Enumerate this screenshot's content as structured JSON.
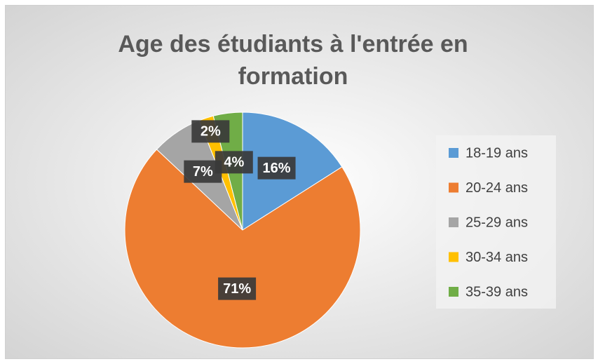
{
  "chart_data": {
    "type": "pie",
    "title": "Age des étudiants à l'entrée en formation",
    "categories": [
      "18-19 ans",
      "20-24 ans",
      "25-29 ans",
      "30-34 ans",
      "35-39 ans"
    ],
    "values": [
      16,
      71,
      7,
      2,
      4
    ],
    "value_labels": [
      "16%",
      "71%",
      "7%",
      "2%",
      "4%"
    ],
    "colors": [
      "#5b9bd5",
      "#ed7d31",
      "#a5a5a5",
      "#ffc000",
      "#70ad47"
    ],
    "legend": "right"
  }
}
